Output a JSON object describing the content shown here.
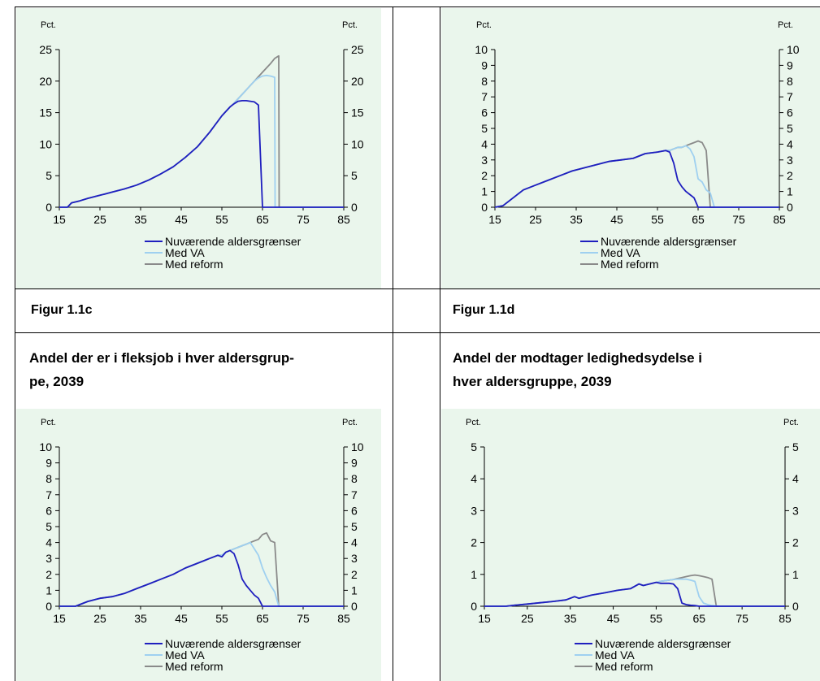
{
  "labels": {
    "fig_c": "Figur 1.1c",
    "fig_d": "Figur 1.1d",
    "title_c_line1": "Andel der er i fleksjob i hver aldersgrup-",
    "title_c_line2": "pe, 2039",
    "title_d_line1": "Andel der modtager ledighedsydelse i",
    "title_d_line2": "hver aldersgruppe, 2039"
  },
  "colors": {
    "panel_bg": "#eaf6ec",
    "series_current": "#1f1fbf",
    "series_va": "#9fd0f0",
    "series_reform": "#8a8a8a"
  },
  "chart_data": [
    {
      "type": "line",
      "axis_unit_left": "Pct.",
      "axis_unit_right": "Pct.",
      "xlim": [
        15,
        85
      ],
      "xticks": [
        15,
        25,
        35,
        45,
        55,
        65,
        75,
        85
      ],
      "ylim": [
        0,
        25
      ],
      "yticks": [
        0,
        5,
        10,
        15,
        20,
        25
      ],
      "legend": [
        "Nuværende aldersgrænser",
        "Med VA",
        "Med reform"
      ],
      "legend_position": "bottom",
      "series": [
        {
          "name": "Nuværende aldersgrænser",
          "x": [
            15,
            17,
            18,
            20,
            22,
            25,
            28,
            31,
            34,
            37,
            40,
            43,
            46,
            49,
            52,
            55,
            57,
            58,
            59,
            60,
            61,
            62,
            63,
            64,
            65,
            65.1,
            70,
            85
          ],
          "y": [
            0,
            0,
            0.7,
            1.0,
            1.4,
            1.9,
            2.4,
            2.9,
            3.5,
            4.3,
            5.3,
            6.4,
            7.9,
            9.6,
            11.9,
            14.5,
            15.9,
            16.4,
            16.8,
            16.9,
            16.9,
            16.8,
            16.7,
            16.2,
            0,
            0,
            0,
            0
          ]
        },
        {
          "name": "Med VA",
          "x": [
            15,
            17,
            18,
            20,
            22,
            25,
            28,
            31,
            34,
            37,
            40,
            43,
            46,
            49,
            52,
            55,
            57,
            58,
            59,
            60,
            61,
            62,
            63,
            64,
            65,
            66,
            67,
            68,
            68.1,
            70,
            85
          ],
          "y": [
            0,
            0,
            0.7,
            1.0,
            1.4,
            1.9,
            2.4,
            2.9,
            3.5,
            4.3,
            5.3,
            6.4,
            7.9,
            9.6,
            11.9,
            14.5,
            15.9,
            16.5,
            17.2,
            17.9,
            18.6,
            19.3,
            20.0,
            20.5,
            20.8,
            20.9,
            20.8,
            20.6,
            0,
            0,
            0
          ]
        },
        {
          "name": "Med reform",
          "x": [
            15,
            17,
            18,
            20,
            22,
            25,
            28,
            31,
            34,
            37,
            40,
            43,
            46,
            49,
            52,
            55,
            57,
            58,
            59,
            60,
            61,
            62,
            63,
            64,
            65,
            66,
            67,
            68,
            69,
            69.1,
            85
          ],
          "y": [
            0,
            0,
            0.7,
            1.0,
            1.4,
            1.9,
            2.4,
            2.9,
            3.5,
            4.3,
            5.3,
            6.4,
            7.9,
            9.6,
            11.9,
            14.5,
            15.9,
            16.5,
            17.2,
            17.9,
            18.6,
            19.3,
            20.0,
            20.7,
            21.4,
            22.1,
            22.8,
            23.6,
            24.0,
            0,
            0
          ]
        }
      ]
    },
    {
      "type": "line",
      "axis_unit_left": "Pct.",
      "axis_unit_right": "Pct.",
      "xlim": [
        15,
        85
      ],
      "xticks": [
        15,
        25,
        35,
        45,
        55,
        65,
        75,
        85
      ],
      "ylim": [
        0,
        10
      ],
      "yticks": [
        0,
        1,
        2,
        3,
        4,
        5,
        6,
        7,
        8,
        9,
        10
      ],
      "legend": [
        "Nuværende aldersgrænser",
        "Med VA",
        "Med reform"
      ],
      "legend_position": "bottom",
      "series": [
        {
          "name": "Nuværende aldersgrænser",
          "x": [
            15,
            17,
            18,
            20,
            22,
            25,
            28,
            31,
            34,
            37,
            40,
            43,
            46,
            49,
            52,
            55,
            57,
            58,
            59,
            60,
            61,
            62,
            63,
            64,
            65,
            70,
            85
          ],
          "y": [
            0,
            0.1,
            0.3,
            0.7,
            1.1,
            1.4,
            1.7,
            2.0,
            2.3,
            2.5,
            2.7,
            2.9,
            3.0,
            3.1,
            3.4,
            3.5,
            3.6,
            3.5,
            2.8,
            1.7,
            1.3,
            1.0,
            0.8,
            0.6,
            0,
            0,
            0
          ]
        },
        {
          "name": "Med VA",
          "x": [
            15,
            17,
            18,
            20,
            22,
            25,
            28,
            31,
            34,
            37,
            40,
            43,
            46,
            49,
            52,
            55,
            57,
            58,
            59,
            60,
            61,
            62,
            63,
            64,
            65,
            66,
            67,
            68,
            69,
            70,
            85
          ],
          "y": [
            0,
            0.1,
            0.3,
            0.7,
            1.1,
            1.4,
            1.7,
            2.0,
            2.3,
            2.5,
            2.7,
            2.9,
            3.0,
            3.1,
            3.4,
            3.5,
            3.6,
            3.6,
            3.7,
            3.8,
            3.8,
            3.9,
            3.7,
            3.2,
            1.8,
            1.6,
            1.1,
            0.9,
            0,
            0,
            0
          ]
        },
        {
          "name": "Med reform",
          "x": [
            15,
            17,
            18,
            20,
            22,
            25,
            28,
            31,
            34,
            37,
            40,
            43,
            46,
            49,
            52,
            55,
            57,
            58,
            59,
            60,
            61,
            62,
            63,
            64,
            65,
            66,
            67,
            68,
            69,
            70,
            85
          ],
          "y": [
            0,
            0.1,
            0.3,
            0.7,
            1.1,
            1.4,
            1.7,
            2.0,
            2.3,
            2.5,
            2.7,
            2.9,
            3.0,
            3.1,
            3.4,
            3.5,
            3.6,
            3.6,
            3.7,
            3.8,
            3.8,
            3.9,
            4.0,
            4.1,
            4.2,
            4.1,
            3.6,
            0,
            0,
            0,
            0
          ]
        }
      ]
    },
    {
      "type": "line",
      "axis_unit_left": "Pct.",
      "axis_unit_right": "Pct.",
      "xlim": [
        15,
        85
      ],
      "xticks": [
        15,
        25,
        35,
        45,
        55,
        65,
        75,
        85
      ],
      "ylim": [
        0,
        10
      ],
      "yticks": [
        0,
        1,
        2,
        3,
        4,
        5,
        6,
        7,
        8,
        9,
        10
      ],
      "legend": [
        "Nuværende aldersgrænser",
        "Med VA",
        "Med reform"
      ],
      "legend_position": "bottom",
      "series": [
        {
          "name": "Nuværende aldersgrænser",
          "x": [
            15,
            19,
            20,
            22,
            25,
            28,
            31,
            34,
            37,
            40,
            43,
            46,
            49,
            52,
            54,
            55,
            56,
            57,
            58,
            59,
            60,
            61,
            62,
            63,
            64,
            65,
            70,
            85
          ],
          "y": [
            0,
            0,
            0.1,
            0.3,
            0.5,
            0.6,
            0.8,
            1.1,
            1.4,
            1.7,
            2.0,
            2.4,
            2.7,
            3.0,
            3.2,
            3.1,
            3.4,
            3.5,
            3.3,
            2.6,
            1.7,
            1.3,
            1.0,
            0.7,
            0.5,
            0,
            0,
            0
          ]
        },
        {
          "name": "Med VA",
          "x": [
            15,
            19,
            20,
            22,
            25,
            28,
            31,
            34,
            37,
            40,
            43,
            46,
            49,
            52,
            54,
            55,
            56,
            57,
            58,
            59,
            60,
            61,
            62,
            63,
            64,
            65,
            66,
            67,
            68,
            69,
            70,
            85
          ],
          "y": [
            0,
            0,
            0.1,
            0.3,
            0.5,
            0.6,
            0.8,
            1.1,
            1.4,
            1.7,
            2.0,
            2.4,
            2.7,
            3.0,
            3.2,
            3.2,
            3.4,
            3.5,
            3.6,
            3.7,
            3.8,
            3.9,
            4.0,
            3.6,
            3.2,
            2.4,
            1.8,
            1.3,
            0.9,
            0,
            0,
            0
          ]
        },
        {
          "name": "Med reform",
          "x": [
            15,
            19,
            20,
            22,
            25,
            28,
            31,
            34,
            37,
            40,
            43,
            46,
            49,
            52,
            54,
            55,
            56,
            57,
            58,
            59,
            60,
            61,
            62,
            63,
            64,
            65,
            66,
            67,
            68,
            69,
            70,
            85
          ],
          "y": [
            0,
            0,
            0.1,
            0.3,
            0.5,
            0.6,
            0.8,
            1.1,
            1.4,
            1.7,
            2.0,
            2.4,
            2.7,
            3.0,
            3.2,
            3.2,
            3.4,
            3.5,
            3.6,
            3.7,
            3.8,
            3.9,
            4.0,
            4.1,
            4.2,
            4.5,
            4.6,
            4.1,
            4.0,
            0,
            0,
            0
          ]
        }
      ]
    },
    {
      "type": "line",
      "axis_unit_left": "Pct.",
      "axis_unit_right": "Pct.",
      "xlim": [
        15,
        85
      ],
      "xticks": [
        15,
        25,
        35,
        45,
        55,
        65,
        75,
        85
      ],
      "ylim": [
        0,
        5
      ],
      "yticks": [
        0,
        1,
        2,
        3,
        4,
        5
      ],
      "legend": [
        "Nuværende aldersgrænser",
        "Med VA",
        "Med reform"
      ],
      "legend_position": "bottom",
      "series": [
        {
          "name": "Nuværende aldersgrænser",
          "x": [
            15,
            20,
            22,
            25,
            28,
            31,
            34,
            36,
            37,
            40,
            43,
            46,
            49,
            51,
            52,
            55,
            56,
            57,
            58,
            59,
            60,
            61,
            62,
            63,
            64,
            65,
            70,
            85
          ],
          "y": [
            0,
            0,
            0.03,
            0.07,
            0.11,
            0.15,
            0.2,
            0.3,
            0.25,
            0.35,
            0.42,
            0.5,
            0.55,
            0.7,
            0.65,
            0.75,
            0.72,
            0.72,
            0.72,
            0.7,
            0.55,
            0.1,
            0.05,
            0.03,
            0.02,
            0,
            0,
            0
          ]
        },
        {
          "name": "Med VA",
          "x": [
            15,
            20,
            22,
            25,
            28,
            31,
            34,
            36,
            37,
            40,
            43,
            46,
            49,
            51,
            52,
            55,
            56,
            57,
            58,
            59,
            60,
            61,
            62,
            63,
            64,
            65,
            66,
            67,
            68,
            70,
            85
          ],
          "y": [
            0,
            0,
            0.03,
            0.07,
            0.11,
            0.15,
            0.2,
            0.3,
            0.25,
            0.35,
            0.42,
            0.5,
            0.55,
            0.7,
            0.65,
            0.75,
            0.78,
            0.8,
            0.82,
            0.84,
            0.85,
            0.85,
            0.85,
            0.82,
            0.78,
            0.3,
            0.1,
            0.05,
            0.02,
            0,
            0
          ]
        },
        {
          "name": "Med reform",
          "x": [
            15,
            20,
            22,
            25,
            28,
            31,
            34,
            36,
            37,
            40,
            43,
            46,
            49,
            51,
            52,
            55,
            56,
            57,
            58,
            59,
            60,
            61,
            62,
            63,
            64,
            65,
            66,
            67,
            68,
            69,
            70,
            85
          ],
          "y": [
            0,
            0,
            0.03,
            0.07,
            0.11,
            0.15,
            0.2,
            0.3,
            0.25,
            0.35,
            0.42,
            0.5,
            0.55,
            0.7,
            0.65,
            0.75,
            0.78,
            0.8,
            0.82,
            0.84,
            0.87,
            0.9,
            0.93,
            0.96,
            0.98,
            0.96,
            0.93,
            0.9,
            0.85,
            0,
            0,
            0
          ]
        }
      ]
    }
  ]
}
